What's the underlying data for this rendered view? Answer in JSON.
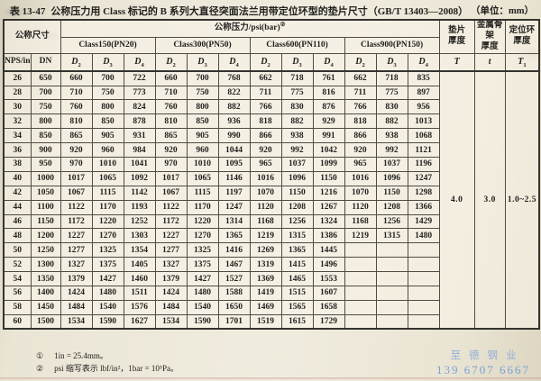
{
  "title": {
    "table_no": "表 13-47",
    "text": "公称压力用 Class 标记的 B 系列大直径突面法兰用带定位环型的垫片尺寸（GB/T 13403—2008）",
    "unit": "（单位：mm）"
  },
  "table": {
    "header": {
      "nominal_size": "公称尺寸",
      "pressure": "公称压力/psi(bar)",
      "pressure_sup": "②",
      "classes": [
        "Class150(PN20)",
        "Class300(PN50)",
        "Class600(PN110)",
        "Class900(PN150)"
      ],
      "nps": "NPS/in",
      "nps_sup": "①",
      "dn": "DN",
      "d_base": "D",
      "d_subs": [
        "2",
        "3",
        "4"
      ],
      "thickness": [
        {
          "line1": "垫片",
          "line2": "厚度"
        },
        {
          "line1": "金属骨架",
          "line2": "厚度"
        },
        {
          "line1": "定位环",
          "line2": "厚度"
        }
      ],
      "sym_T": "T",
      "sym_t": "t",
      "sym_T1_base": "T",
      "sym_T1_sub": "1"
    },
    "merged": {
      "T": "4.0",
      "t": "3.0",
      "T1": "1.0~2.5"
    },
    "rows": [
      {
        "nps": "26",
        "dn": "650",
        "c150": [
          "660",
          "700",
          "722"
        ],
        "c300": [
          "660",
          "700",
          "768"
        ],
        "c600": [
          "662",
          "718",
          "761"
        ],
        "c900": [
          "662",
          "718",
          "835"
        ]
      },
      {
        "nps": "28",
        "dn": "700",
        "c150": [
          "710",
          "750",
          "773"
        ],
        "c300": [
          "710",
          "750",
          "822"
        ],
        "c600": [
          "711",
          "775",
          "816"
        ],
        "c900": [
          "711",
          "775",
          "897"
        ]
      },
      {
        "nps": "30",
        "dn": "750",
        "c150": [
          "760",
          "800",
          "824"
        ],
        "c300": [
          "760",
          "800",
          "882"
        ],
        "c600": [
          "766",
          "830",
          "876"
        ],
        "c900": [
          "766",
          "830",
          "956"
        ]
      },
      {
        "nps": "32",
        "dn": "800",
        "c150": [
          "810",
          "850",
          "878"
        ],
        "c300": [
          "810",
          "850",
          "936"
        ],
        "c600": [
          "818",
          "882",
          "929"
        ],
        "c900": [
          "818",
          "882",
          "1013"
        ]
      },
      {
        "nps": "34",
        "dn": "850",
        "c150": [
          "865",
          "905",
          "931"
        ],
        "c300": [
          "865",
          "905",
          "990"
        ],
        "c600": [
          "866",
          "938",
          "991"
        ],
        "c900": [
          "866",
          "938",
          "1068"
        ]
      },
      {
        "nps": "36",
        "dn": "900",
        "c150": [
          "920",
          "960",
          "984"
        ],
        "c300": [
          "920",
          "960",
          "1044"
        ],
        "c600": [
          "920",
          "992",
          "1042"
        ],
        "c900": [
          "920",
          "992",
          "1121"
        ]
      },
      {
        "nps": "38",
        "dn": "950",
        "c150": [
          "970",
          "1010",
          "1041"
        ],
        "c300": [
          "970",
          "1010",
          "1095"
        ],
        "c600": [
          "965",
          "1037",
          "1099"
        ],
        "c900": [
          "965",
          "1037",
          "1196"
        ]
      },
      {
        "nps": "40",
        "dn": "1000",
        "c150": [
          "1017",
          "1065",
          "1092"
        ],
        "c300": [
          "1017",
          "1065",
          "1146"
        ],
        "c600": [
          "1016",
          "1096",
          "1150"
        ],
        "c900": [
          "1016",
          "1096",
          "1247"
        ]
      },
      {
        "nps": "42",
        "dn": "1050",
        "c150": [
          "1067",
          "1115",
          "1142"
        ],
        "c300": [
          "1067",
          "1115",
          "1197"
        ],
        "c600": [
          "1070",
          "1150",
          "1216"
        ],
        "c900": [
          "1070",
          "1150",
          "1298"
        ]
      },
      {
        "nps": "44",
        "dn": "1100",
        "c150": [
          "1122",
          "1170",
          "1193"
        ],
        "c300": [
          "1122",
          "1170",
          "1247"
        ],
        "c600": [
          "1120",
          "1208",
          "1267"
        ],
        "c900": [
          "1120",
          "1208",
          "1366"
        ]
      },
      {
        "nps": "46",
        "dn": "1150",
        "c150": [
          "1172",
          "1220",
          "1252"
        ],
        "c300": [
          "1172",
          "1220",
          "1314"
        ],
        "c600": [
          "1168",
          "1256",
          "1324"
        ],
        "c900": [
          "1168",
          "1256",
          "1429"
        ]
      },
      {
        "nps": "48",
        "dn": "1200",
        "c150": [
          "1227",
          "1270",
          "1303"
        ],
        "c300": [
          "1227",
          "1270",
          "1365"
        ],
        "c600": [
          "1219",
          "1315",
          "1386"
        ],
        "c900": [
          "1219",
          "1315",
          "1480"
        ]
      },
      {
        "nps": "50",
        "dn": "1250",
        "c150": [
          "1277",
          "1325",
          "1354"
        ],
        "c300": [
          "1277",
          "1325",
          "1416"
        ],
        "c600": [
          "1269",
          "1365",
          "1445"
        ],
        "c900": [
          "",
          "",
          ""
        ]
      },
      {
        "nps": "52",
        "dn": "1300",
        "c150": [
          "1327",
          "1375",
          "1405"
        ],
        "c300": [
          "1327",
          "1375",
          "1467"
        ],
        "c600": [
          "1319",
          "1415",
          "1496"
        ],
        "c900": [
          "",
          "",
          ""
        ]
      },
      {
        "nps": "54",
        "dn": "1350",
        "c150": [
          "1379",
          "1427",
          "1460"
        ],
        "c300": [
          "1379",
          "1427",
          "1527"
        ],
        "c600": [
          "1369",
          "1465",
          "1553"
        ],
        "c900": [
          "",
          "",
          ""
        ]
      },
      {
        "nps": "56",
        "dn": "1400",
        "c150": [
          "1424",
          "1480",
          "1511"
        ],
        "c300": [
          "1424",
          "1480",
          "1588"
        ],
        "c600": [
          "1419",
          "1515",
          "1607"
        ],
        "c900": [
          "",
          "",
          ""
        ]
      },
      {
        "nps": "58",
        "dn": "1450",
        "c150": [
          "1484",
          "1540",
          "1576"
        ],
        "c300": [
          "1484",
          "1540",
          "1650"
        ],
        "c600": [
          "1469",
          "1565",
          "1658"
        ],
        "c900": [
          "",
          "",
          ""
        ]
      },
      {
        "nps": "60",
        "dn": "1500",
        "c150": [
          "1534",
          "1590",
          "1627"
        ],
        "c300": [
          "1534",
          "1590",
          "1701"
        ],
        "c600": [
          "1519",
          "1615",
          "1729"
        ],
        "c900": [
          "",
          "",
          ""
        ]
      }
    ]
  },
  "footnotes": [
    {
      "mark": "①",
      "text": "1in = 25.4mm。"
    },
    {
      "mark": "②",
      "text": "psi 缩写表示 lbf/in²，1bar = 10⁵Pa。"
    }
  ],
  "watermark": {
    "name": "至德钢业",
    "phone": "139 6707 6667",
    "color": "#6d9bd8"
  }
}
